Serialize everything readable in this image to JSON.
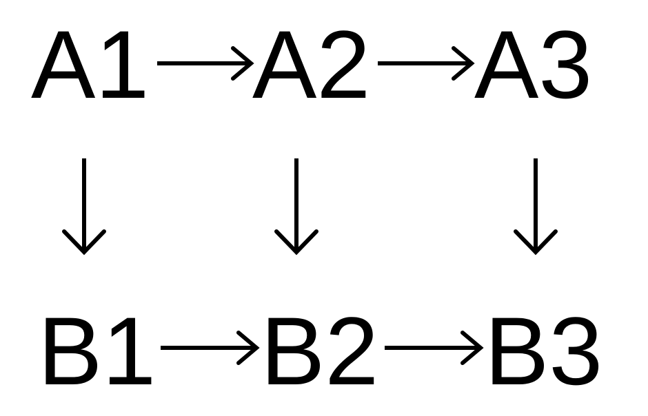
{
  "diagram": {
    "nodes": {
      "a1": "A1",
      "a2": "A2",
      "a3": "A3",
      "b1": "B1",
      "b2": "B2",
      "b3": "B3"
    },
    "edges": [
      {
        "from": "A1",
        "to": "A2"
      },
      {
        "from": "A2",
        "to": "A3"
      },
      {
        "from": "B1",
        "to": "B2"
      },
      {
        "from": "B2",
        "to": "B3"
      },
      {
        "from": "A1",
        "to": "B1"
      },
      {
        "from": "A2",
        "to": "B2"
      },
      {
        "from": "A3",
        "to": "B3"
      }
    ],
    "colors": {
      "ink": "#000000",
      "background": "#ffffff"
    }
  }
}
